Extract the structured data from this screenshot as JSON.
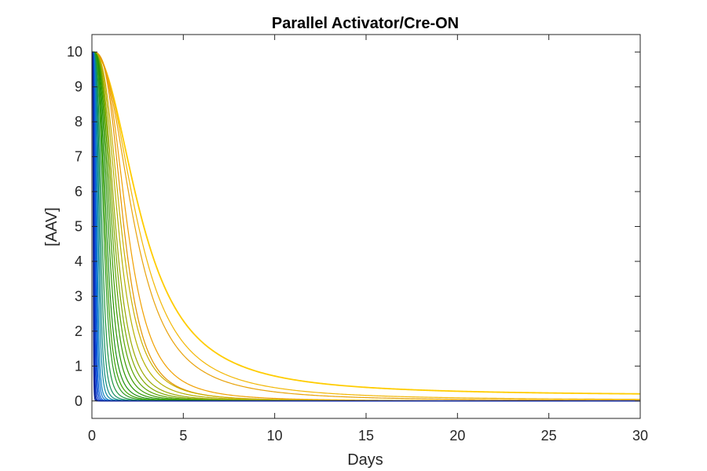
{
  "chart_data": {
    "type": "line",
    "title": "Parallel Activator/Cre-ON",
    "xlabel": "Days",
    "ylabel": "[AAV]",
    "xlim": [
      0,
      30
    ],
    "ylim": [
      -0.5,
      10.5
    ],
    "xticks": [
      0,
      5,
      10,
      15,
      20,
      25,
      30
    ],
    "yticks": [
      0,
      1,
      2,
      3,
      4,
      5,
      6,
      7,
      8,
      9,
      10
    ],
    "xtick_labels": [
      "0",
      "5",
      "10",
      "15",
      "20",
      "25",
      "30"
    ],
    "ytick_labels": [
      "0",
      "1",
      "2",
      "3",
      "4",
      "5",
      "6",
      "7",
      "8",
      "9",
      "10"
    ],
    "grid": false,
    "legend": "none",
    "initial_value": 10,
    "series": [
      {
        "color": "#ffcc00",
        "half_time": 2.8,
        "steepness": 2.2,
        "plateau": 0.15
      },
      {
        "color": "#f2b705",
        "half_time": 2.55,
        "steepness": 2.4,
        "plateau": 0.02
      },
      {
        "color": "#e8a20a",
        "half_time": 2.35,
        "steepness": 2.5,
        "plateau": 0.0
      },
      {
        "color": "#f0a000",
        "half_time": 1.95,
        "steepness": 3.0,
        "plateau": 0.0
      },
      {
        "color": "#e39400",
        "half_time": 1.75,
        "steepness": 3.2,
        "plateau": 0.0
      },
      {
        "color": "#c9b000",
        "half_time": 1.6,
        "steepness": 3.0,
        "plateau": 0.0
      },
      {
        "color": "#b4b000",
        "half_time": 1.45,
        "steepness": 3.1,
        "plateau": 0.0
      },
      {
        "color": "#9aa800",
        "half_time": 1.3,
        "steepness": 3.2,
        "plateau": 0.0
      },
      {
        "color": "#7ea800",
        "half_time": 1.2,
        "steepness": 3.3,
        "plateau": 0.0
      },
      {
        "color": "#5aa200",
        "half_time": 1.1,
        "steepness": 3.4,
        "plateau": 0.0
      },
      {
        "color": "#3c9a00",
        "half_time": 1.0,
        "steepness": 3.5,
        "plateau": 0.0
      },
      {
        "color": "#2a9500",
        "half_time": 0.9,
        "steepness": 3.6,
        "plateau": 0.0
      },
      {
        "color": "#1f8e10",
        "half_time": 0.8,
        "steepness": 3.7,
        "plateau": 0.0
      },
      {
        "color": "#3aa000",
        "half_time": 0.72,
        "steepness": 3.8,
        "plateau": 0.0
      },
      {
        "color": "#2c9a20",
        "half_time": 0.65,
        "steepness": 3.9,
        "plateau": 0.0
      },
      {
        "color": "#1d9440",
        "half_time": 0.55,
        "steepness": 4.0,
        "plateau": 0.0
      },
      {
        "color": "#138f60",
        "half_time": 0.47,
        "steepness": 4.2,
        "plateau": 0.0
      },
      {
        "color": "#0d8a80",
        "half_time": 0.4,
        "steepness": 4.4,
        "plateau": 0.0
      },
      {
        "color": "#0a85a0",
        "half_time": 0.34,
        "steepness": 4.6,
        "plateau": 0.0
      },
      {
        "color": "#0a80c0",
        "half_time": 0.28,
        "steepness": 4.8,
        "plateau": 0.0
      },
      {
        "color": "#0a70d0",
        "half_time": 0.24,
        "steepness": 5.0,
        "plateau": 0.0
      },
      {
        "color": "#0a60d8",
        "half_time": 0.2,
        "steepness": 5.2,
        "plateau": 0.0
      },
      {
        "color": "#0a50d8",
        "half_time": 0.17,
        "steepness": 5.4,
        "plateau": 0.0
      },
      {
        "color": "#0a40d0",
        "half_time": 0.14,
        "steepness": 5.6,
        "plateau": 0.0
      },
      {
        "color": "#0a30c0",
        "half_time": 0.11,
        "steepness": 5.8,
        "plateau": 0.0
      },
      {
        "color": "#0a28a8",
        "half_time": 0.09,
        "steepness": 6.0,
        "plateau": 0.0
      },
      {
        "color": "#0a2090",
        "half_time": 0.07,
        "steepness": 6.2,
        "plateau": 0.0
      }
    ]
  }
}
